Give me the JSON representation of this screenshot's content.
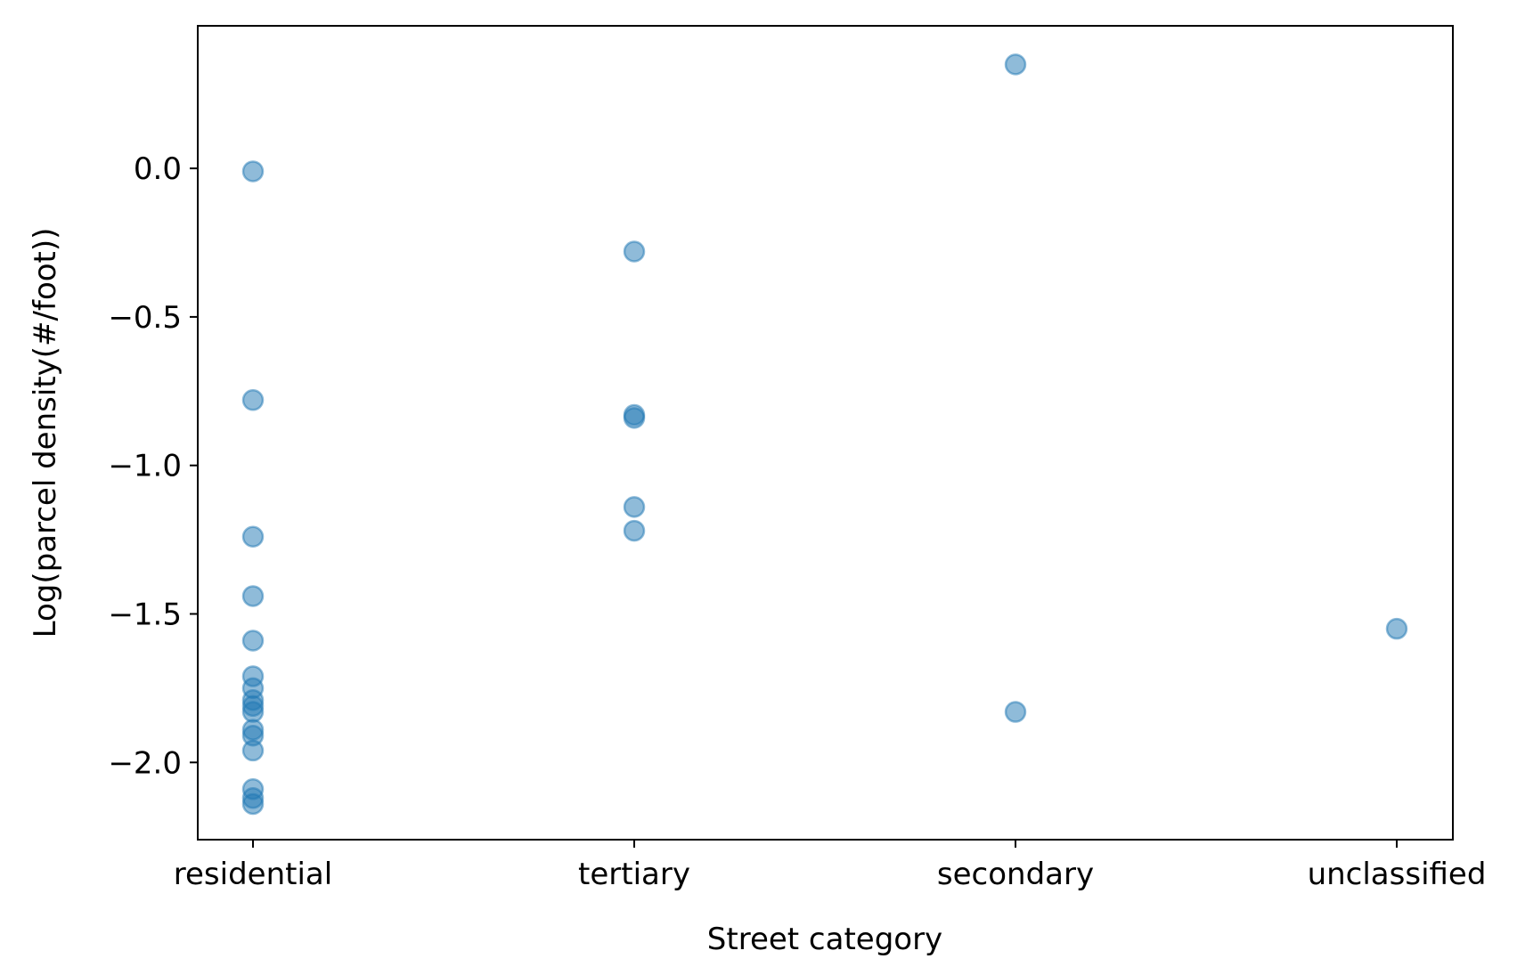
{
  "chart_data": {
    "type": "scatter",
    "title": "",
    "xlabel": "Street category",
    "ylabel": "Log(parcel density(#/foot))",
    "categories": [
      "residential",
      "tertiary",
      "secondary",
      "unclassified"
    ],
    "ylim": [
      -2.26,
      0.48
    ],
    "yticks": [
      0.0,
      -0.5,
      -1.0,
      -1.5,
      -2.0
    ],
    "ytick_labels": [
      "0.0",
      "−0.5",
      "−1.0",
      "−1.5",
      "−2.0"
    ],
    "grid": false,
    "legend": "none",
    "color": "#1f77b4",
    "alpha": 0.5,
    "series": [
      {
        "points": [
          {
            "x": "residential",
            "y": -0.01
          },
          {
            "x": "residential",
            "y": -0.78
          },
          {
            "x": "residential",
            "y": -1.24
          },
          {
            "x": "residential",
            "y": -1.44
          },
          {
            "x": "residential",
            "y": -1.59
          },
          {
            "x": "residential",
            "y": -1.71
          },
          {
            "x": "residential",
            "y": -1.75
          },
          {
            "x": "residential",
            "y": -1.79
          },
          {
            "x": "residential",
            "y": -1.81
          },
          {
            "x": "residential",
            "y": -1.83
          },
          {
            "x": "residential",
            "y": -1.89
          },
          {
            "x": "residential",
            "y": -1.91
          },
          {
            "x": "residential",
            "y": -1.96
          },
          {
            "x": "residential",
            "y": -2.09
          },
          {
            "x": "residential",
            "y": -2.12
          },
          {
            "x": "residential",
            "y": -2.14
          },
          {
            "x": "tertiary",
            "y": -0.28
          },
          {
            "x": "tertiary",
            "y": -0.83
          },
          {
            "x": "tertiary",
            "y": -0.84
          },
          {
            "x": "tertiary",
            "y": -1.14
          },
          {
            "x": "tertiary",
            "y": -1.22
          },
          {
            "x": "secondary",
            "y": 0.35
          },
          {
            "x": "secondary",
            "y": -1.83
          },
          {
            "x": "unclassified",
            "y": -1.55
          }
        ]
      }
    ]
  }
}
